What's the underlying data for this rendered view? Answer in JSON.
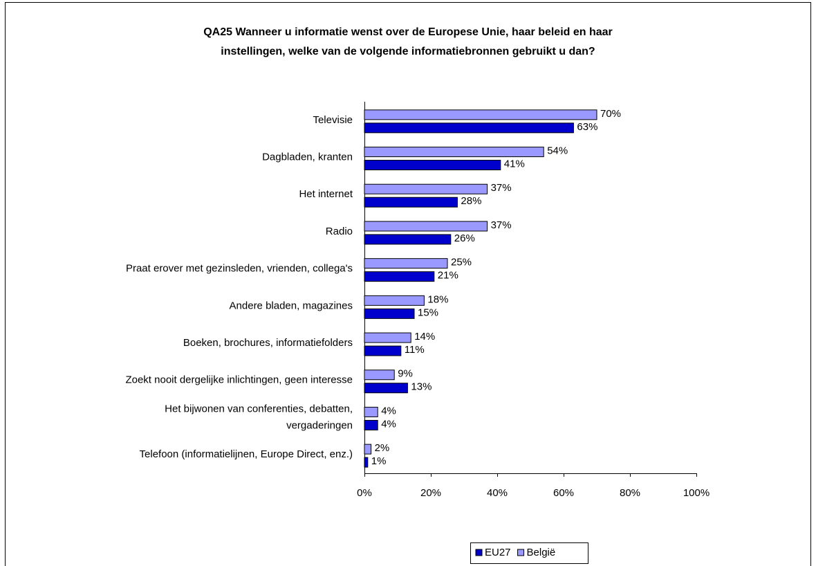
{
  "chart_data": {
    "type": "hbar",
    "title": "QA25 Wanneer u informatie wenst over de Europese Unie, haar beleid en haar\ninstellingen, welke van de volgende informatiebronnen gebruikt u dan?",
    "categories": [
      "Televisie",
      "Dagbladen, kranten",
      "Het internet",
      "Radio",
      "Praat erover met gezinsleden, vrienden, collega's",
      "Andere bladen, magazines",
      "Boeken, brochures, informatiefolders",
      "Zoekt nooit dergelijke inlichtingen, geen interesse",
      "Het bijwonen van conferenties, debatten,\nvergaderingen",
      "Telefoon (informatielijnen, Europe Direct, enz.)"
    ],
    "series": [
      {
        "name": "EU27",
        "color": "#0000cc",
        "values": [
          63,
          41,
          28,
          26,
          21,
          15,
          11,
          13,
          4,
          1
        ],
        "value_labels": [
          "63%",
          "41%",
          "28%",
          "26%",
          "21%",
          "15%",
          "11%",
          "13%",
          "4%",
          "1%"
        ]
      },
      {
        "name": "België",
        "color": "#9999ff",
        "values": [
          70,
          54,
          37,
          37,
          25,
          18,
          14,
          9,
          4,
          2
        ],
        "value_labels": [
          "70%",
          "54%",
          "37%",
          "37%",
          "25%",
          "18%",
          "14%",
          "9%",
          "4%",
          "2%"
        ]
      }
    ],
    "xlim": [
      0,
      100
    ],
    "xticks": [
      {
        "value": 0,
        "label": "0%"
      },
      {
        "value": 20,
        "label": "20%"
      },
      {
        "value": 40,
        "label": "40%"
      },
      {
        "value": 60,
        "label": "60%"
      },
      {
        "value": 80,
        "label": "80%"
      },
      {
        "value": 100,
        "label": "100%"
      }
    ],
    "legend": "bottom"
  }
}
